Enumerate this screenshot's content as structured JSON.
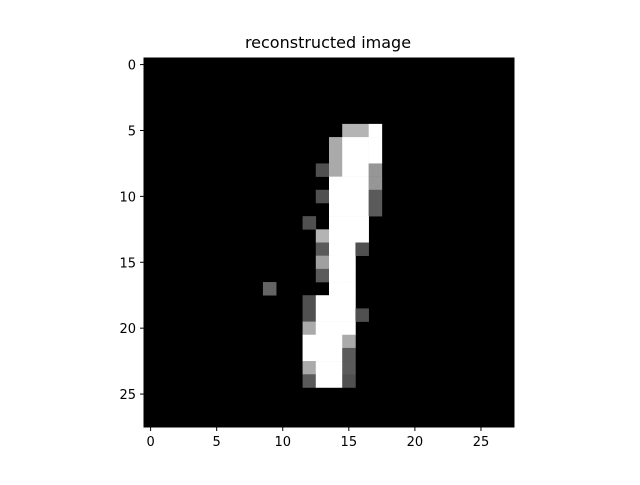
{
  "chart_data": {
    "type": "heatmap",
    "title": "reconstructed image",
    "colormap": "gray",
    "value_range": [
      0,
      255
    ],
    "rows": 28,
    "cols": 28,
    "x_ticks": [
      0,
      5,
      10,
      15,
      20,
      25
    ],
    "y_ticks": [
      0,
      5,
      10,
      15,
      20,
      25
    ],
    "xlim": [
      -0.5,
      27.5
    ],
    "ylim": [
      27.5,
      -0.5
    ],
    "xlabel": "",
    "ylabel": "",
    "nonzero_pixels": [
      [
        5,
        15,
        180
      ],
      [
        5,
        16,
        180
      ],
      [
        5,
        17,
        255
      ],
      [
        6,
        14,
        170
      ],
      [
        6,
        15,
        255
      ],
      [
        6,
        16,
        255
      ],
      [
        6,
        17,
        255
      ],
      [
        7,
        14,
        170
      ],
      [
        7,
        15,
        255
      ],
      [
        7,
        16,
        255
      ],
      [
        7,
        17,
        255
      ],
      [
        8,
        13,
        80
      ],
      [
        8,
        14,
        170
      ],
      [
        8,
        15,
        255
      ],
      [
        8,
        16,
        255
      ],
      [
        8,
        17,
        150
      ],
      [
        9,
        14,
        255
      ],
      [
        9,
        15,
        255
      ],
      [
        9,
        16,
        255
      ],
      [
        9,
        17,
        150
      ],
      [
        10,
        13,
        80
      ],
      [
        10,
        14,
        255
      ],
      [
        10,
        15,
        255
      ],
      [
        10,
        16,
        255
      ],
      [
        10,
        17,
        90
      ],
      [
        11,
        14,
        255
      ],
      [
        11,
        15,
        255
      ],
      [
        11,
        16,
        255
      ],
      [
        11,
        17,
        90
      ],
      [
        12,
        12,
        80
      ],
      [
        12,
        14,
        255
      ],
      [
        12,
        15,
        255
      ],
      [
        12,
        16,
        255
      ],
      [
        13,
        13,
        180
      ],
      [
        13,
        14,
        255
      ],
      [
        13,
        15,
        255
      ],
      [
        13,
        16,
        255
      ],
      [
        14,
        13,
        90
      ],
      [
        14,
        14,
        255
      ],
      [
        14,
        15,
        255
      ],
      [
        14,
        16,
        80
      ],
      [
        15,
        13,
        160
      ],
      [
        15,
        14,
        255
      ],
      [
        15,
        15,
        255
      ],
      [
        16,
        13,
        90
      ],
      [
        16,
        14,
        255
      ],
      [
        16,
        15,
        255
      ],
      [
        17,
        9,
        100
      ],
      [
        17,
        14,
        255
      ],
      [
        17,
        15,
        255
      ],
      [
        18,
        12,
        80
      ],
      [
        18,
        13,
        255
      ],
      [
        18,
        14,
        255
      ],
      [
        18,
        15,
        255
      ],
      [
        19,
        12,
        80
      ],
      [
        19,
        13,
        255
      ],
      [
        19,
        14,
        255
      ],
      [
        19,
        15,
        255
      ],
      [
        19,
        16,
        80
      ],
      [
        20,
        12,
        170
      ],
      [
        20,
        13,
        255
      ],
      [
        20,
        14,
        255
      ],
      [
        20,
        15,
        255
      ],
      [
        21,
        12,
        255
      ],
      [
        21,
        13,
        255
      ],
      [
        21,
        14,
        255
      ],
      [
        21,
        15,
        170
      ],
      [
        22,
        12,
        255
      ],
      [
        22,
        13,
        255
      ],
      [
        22,
        14,
        255
      ],
      [
        22,
        15,
        90
      ],
      [
        23,
        12,
        170
      ],
      [
        23,
        13,
        255
      ],
      [
        23,
        14,
        255
      ],
      [
        23,
        15,
        90
      ],
      [
        24,
        12,
        90
      ],
      [
        24,
        13,
        255
      ],
      [
        24,
        14,
        255
      ],
      [
        24,
        15,
        80
      ]
    ]
  }
}
